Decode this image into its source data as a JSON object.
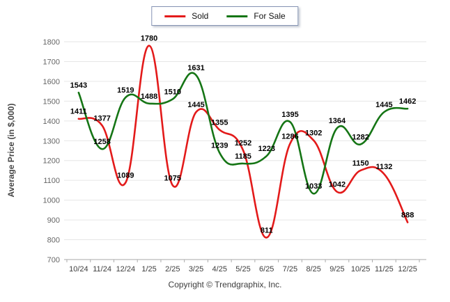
{
  "legend": {
    "items": [
      {
        "label": "Sold",
        "color": "#e31a1a"
      },
      {
        "label": "For Sale",
        "color": "#157515"
      }
    ]
  },
  "y_axis_title": "Average Price (in $,000)",
  "copyright": "Copyright © Trendgraphix, Inc.",
  "colors": {
    "sold": "#e31a1a",
    "for_sale": "#157515",
    "grid": "#e6e6e6",
    "axis": "#aaaaaa",
    "y_tick_text": "#666666",
    "x_tick_text": "#3d3d3d",
    "data_label": "#000000"
  },
  "chart_data": {
    "type": "line",
    "title": "",
    "xlabel": "",
    "ylabel": "Average Price (in $,000)",
    "categories": [
      "10/24",
      "11/24",
      "12/24",
      "1/25",
      "2/25",
      "3/25",
      "4/25",
      "5/25",
      "6/25",
      "7/25",
      "8/25",
      "9/25",
      "10/25",
      "11/25",
      "12/25"
    ],
    "series": [
      {
        "name": "Sold",
        "color": "#e31a1a",
        "values": [
          1411,
          1377,
          1089,
          1780,
          1075,
          1445,
          1355,
          1252,
          811,
          1286,
          1302,
          1042,
          1150,
          1132,
          888
        ]
      },
      {
        "name": "For Sale",
        "color": "#157515",
        "values": [
          1543,
          1258,
          1519,
          1488,
          1510,
          1631,
          1239,
          1185,
          1223,
          1395,
          1033,
          1364,
          1282,
          1445,
          1462
        ]
      }
    ],
    "ylim": [
      700,
      1800
    ],
    "ytick_step": 100,
    "yticks": [
      700,
      800,
      900,
      1000,
      1100,
      1200,
      1300,
      1400,
      1500,
      1600,
      1700,
      1800
    ],
    "grid": "horizontal",
    "legend_position": "top-center",
    "data_labels": true
  }
}
